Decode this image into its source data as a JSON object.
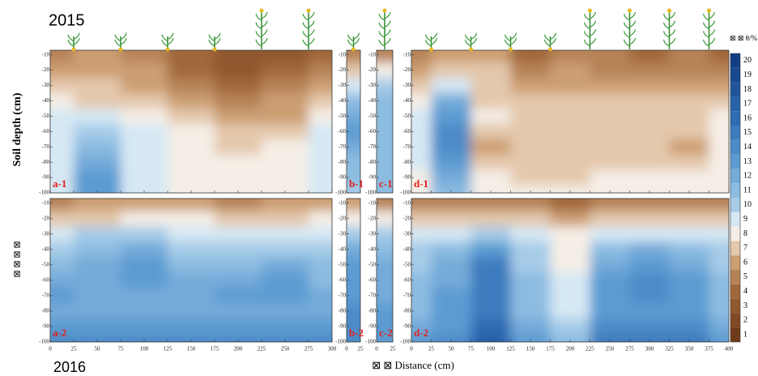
{
  "figure": {
    "title_top": "2015",
    "title_bottom": "2016",
    "y_label": "Soil depth (cm)",
    "y_label_2": "⊠ ⊠ ⊠ ⊠",
    "x_label": "⊠ ⊠ Distance (cm)"
  },
  "colorbar": {
    "label": "⊠ ⊠ θ/%",
    "lim": [
      0.5,
      20.5
    ],
    "ticks": [
      1,
      2,
      3,
      4,
      5,
      6,
      7,
      8,
      9,
      10,
      11,
      12,
      13,
      14,
      15,
      16,
      17,
      18,
      19,
      20
    ]
  },
  "chart_data": [
    {
      "type": "contour",
      "label": "a-1",
      "xlim": [
        0,
        300
      ],
      "xticks": [
        0,
        25,
        50,
        75,
        100,
        125,
        150,
        175,
        200,
        225,
        250,
        275,
        300
      ],
      "ylim": [
        -7,
        -100
      ],
      "yticks": [
        -10,
        -20,
        -30,
        -40,
        -50,
        -60,
        -70,
        -80,
        -90,
        -100
      ],
      "x": [
        0,
        50,
        100,
        150,
        200,
        250,
        300
      ],
      "y": [
        -10,
        -20,
        -30,
        -40,
        -50,
        -60,
        -70,
        -80,
        -90,
        -100
      ],
      "z": [
        [
          5,
          6,
          5,
          4,
          3,
          3,
          4
        ],
        [
          6,
          6,
          6,
          4,
          3,
          4,
          5
        ],
        [
          7,
          7,
          6,
          5,
          4,
          5,
          6
        ],
        [
          8,
          7,
          7,
          6,
          5,
          6,
          7
        ],
        [
          9,
          9,
          8,
          7,
          6,
          6,
          8
        ],
        [
          9,
          10,
          9,
          8,
          7,
          7,
          9
        ],
        [
          9,
          11,
          9,
          8,
          7,
          8,
          9
        ],
        [
          9,
          12,
          9,
          8,
          8,
          8,
          9
        ],
        [
          9,
          13,
          9,
          8,
          8,
          8,
          9
        ],
        [
          9,
          13,
          9,
          8,
          8,
          8,
          9
        ]
      ]
    },
    {
      "type": "contour",
      "label": "b-1",
      "xlim": [
        0,
        25
      ],
      "xticks": [
        0,
        25
      ],
      "ylim": [
        -7,
        -100
      ],
      "yticks": [
        -10,
        -20,
        -30,
        -40,
        -50,
        -60,
        -70,
        -80,
        -90,
        -100
      ],
      "x": [
        0,
        25
      ],
      "y": [
        -10,
        -20,
        -30,
        -40,
        -50,
        -60,
        -70,
        -80,
        -90,
        -100
      ],
      "z": [
        [
          5,
          5
        ],
        [
          7,
          7
        ],
        [
          9,
          9
        ],
        [
          11,
          11
        ],
        [
          12,
          12
        ],
        [
          13,
          13
        ],
        [
          12,
          12
        ],
        [
          11,
          11
        ],
        [
          11,
          11
        ],
        [
          10,
          10
        ]
      ]
    },
    {
      "type": "contour",
      "label": "c-1",
      "xlim": [
        0,
        25
      ],
      "xticks": [
        0,
        25
      ],
      "ylim": [
        -7,
        -100
      ],
      "yticks": [
        -10,
        -20,
        -30,
        -40,
        -50,
        -60,
        -70,
        -80,
        -90,
        -100
      ],
      "x": [
        0,
        25
      ],
      "y": [
        -10,
        -20,
        -30,
        -40,
        -50,
        -60,
        -70,
        -80,
        -90,
        -100
      ],
      "z": [
        [
          5,
          5
        ],
        [
          8,
          8
        ],
        [
          10,
          10
        ],
        [
          11,
          11
        ],
        [
          11,
          11
        ],
        [
          11,
          11
        ],
        [
          11,
          11
        ],
        [
          11,
          11
        ],
        [
          11,
          11
        ],
        [
          11,
          11
        ]
      ]
    },
    {
      "type": "contour",
      "label": "d-1",
      "xlim": [
        0,
        400
      ],
      "xticks": [
        0,
        25,
        50,
        75,
        100,
        125,
        150,
        175,
        200,
        225,
        250,
        275,
        300,
        325,
        350,
        375,
        400
      ],
      "ylim": [
        -7,
        -100
      ],
      "yticks": [
        -10,
        -20,
        -30,
        -40,
        -50,
        -60,
        -70,
        -80,
        -90,
        -100
      ],
      "x": [
        0,
        50,
        100,
        150,
        200,
        250,
        300,
        350,
        400
      ],
      "y": [
        -10,
        -20,
        -30,
        -40,
        -50,
        -60,
        -70,
        -80,
        -90,
        -100
      ],
      "z": [
        [
          5,
          6,
          6,
          4,
          5,
          5,
          4,
          5,
          4
        ],
        [
          6,
          7,
          7,
          5,
          6,
          5,
          5,
          5,
          5
        ],
        [
          7,
          9,
          7,
          6,
          6,
          6,
          6,
          6,
          6
        ],
        [
          8,
          12,
          7,
          7,
          7,
          7,
          7,
          7,
          7
        ],
        [
          9,
          13,
          8,
          7,
          7,
          7,
          7,
          7,
          8
        ],
        [
          9,
          14,
          7,
          7,
          7,
          7,
          7,
          7,
          8
        ],
        [
          9,
          14,
          6,
          7,
          7,
          7,
          7,
          6,
          8
        ],
        [
          9,
          13,
          7,
          7,
          7,
          7,
          7,
          7,
          8
        ],
        [
          8,
          12,
          8,
          7,
          7,
          8,
          8,
          8,
          8
        ],
        [
          8,
          11,
          8,
          8,
          8,
          8,
          8,
          8,
          8
        ]
      ]
    },
    {
      "type": "contour",
      "label": "a-2",
      "xlim": [
        0,
        300
      ],
      "xticks": [
        0,
        25,
        50,
        75,
        100,
        125,
        150,
        175,
        200,
        225,
        250,
        275,
        300
      ],
      "ylim": [
        -7,
        -100
      ],
      "yticks": [
        -10,
        -20,
        -30,
        -40,
        -50,
        -60,
        -70,
        -80,
        -90,
        -100
      ],
      "x": [
        0,
        50,
        100,
        150,
        200,
        250,
        300
      ],
      "y": [
        -10,
        -20,
        -30,
        -40,
        -50,
        -60,
        -70,
        -80,
        -90,
        -100
      ],
      "z": [
        [
          5,
          6,
          6,
          6,
          5,
          6,
          6
        ],
        [
          7,
          7,
          8,
          8,
          7,
          7,
          8
        ],
        [
          9,
          10,
          10,
          9,
          9,
          9,
          9
        ],
        [
          10,
          11,
          12,
          10,
          10,
          10,
          10
        ],
        [
          11,
          12,
          13,
          11,
          11,
          12,
          11
        ],
        [
          12,
          12,
          13,
          12,
          12,
          13,
          11
        ],
        [
          13,
          12,
          12,
          12,
          13,
          13,
          12
        ],
        [
          12,
          12,
          12,
          12,
          12,
          12,
          12
        ],
        [
          13,
          13,
          13,
          13,
          13,
          13,
          13
        ],
        [
          14,
          14,
          14,
          14,
          14,
          14,
          14
        ]
      ]
    },
    {
      "type": "contour",
      "label": "b-2",
      "xlim": [
        0,
        25
      ],
      "xticks": [
        0,
        25
      ],
      "ylim": [
        -7,
        -100
      ],
      "yticks": [
        -10,
        -20,
        -30,
        -40,
        -50,
        -60,
        -70,
        -80,
        -90,
        -100
      ],
      "x": [
        0,
        25
      ],
      "y": [
        -10,
        -20,
        -30,
        -40,
        -50,
        -60,
        -70,
        -80,
        -90,
        -100
      ],
      "z": [
        [
          6,
          6
        ],
        [
          8,
          8
        ],
        [
          10,
          10
        ],
        [
          12,
          12
        ],
        [
          13,
          13
        ],
        [
          13,
          13
        ],
        [
          13,
          13
        ],
        [
          14,
          14
        ],
        [
          14,
          14
        ],
        [
          14,
          14
        ]
      ]
    },
    {
      "type": "contour",
      "label": "c-2",
      "xlim": [
        0,
        25
      ],
      "xticks": [
        0,
        25
      ],
      "ylim": [
        -7,
        -100
      ],
      "yticks": [
        -10,
        -20,
        -30,
        -40,
        -50,
        -60,
        -70,
        -80,
        -90,
        -100
      ],
      "x": [
        0,
        25
      ],
      "y": [
        -10,
        -20,
        -30,
        -40,
        -50,
        -60,
        -70,
        -80,
        -90,
        -100
      ],
      "z": [
        [
          5,
          5
        ],
        [
          8,
          8
        ],
        [
          10,
          10
        ],
        [
          11,
          11
        ],
        [
          12,
          12
        ],
        [
          12,
          12
        ],
        [
          12,
          12
        ],
        [
          13,
          13
        ],
        [
          13,
          13
        ],
        [
          13,
          13
        ]
      ]
    },
    {
      "type": "contour",
      "label": "d-2",
      "xlim": [
        0,
        400
      ],
      "xticks": [
        0,
        25,
        50,
        75,
        100,
        125,
        150,
        175,
        200,
        225,
        250,
        275,
        300,
        325,
        350,
        375,
        400
      ],
      "ylim": [
        -7,
        -100
      ],
      "yticks": [
        -10,
        -20,
        -30,
        -40,
        -50,
        -60,
        -70,
        -80,
        -90,
        -100
      ],
      "x": [
        0,
        50,
        100,
        150,
        200,
        250,
        300,
        350,
        400
      ],
      "y": [
        -10,
        -20,
        -30,
        -40,
        -50,
        -60,
        -70,
        -80,
        -90,
        -100
      ],
      "z": [
        [
          5,
          5,
          5,
          5,
          4,
          5,
          5,
          5,
          5
        ],
        [
          7,
          7,
          7,
          7,
          6,
          7,
          7,
          7,
          7
        ],
        [
          9,
          9,
          10,
          9,
          8,
          9,
          9,
          9,
          9
        ],
        [
          10,
          11,
          13,
          10,
          8,
          11,
          12,
          11,
          10
        ],
        [
          10,
          12,
          15,
          10,
          8,
          12,
          13,
          12,
          10
        ],
        [
          11,
          12,
          15,
          11,
          9,
          13,
          14,
          13,
          11
        ],
        [
          11,
          13,
          15,
          11,
          9,
          13,
          14,
          13,
          11
        ],
        [
          11,
          13,
          15,
          11,
          9,
          13,
          13,
          13,
          11
        ],
        [
          12,
          13,
          16,
          12,
          10,
          14,
          14,
          14,
          12
        ],
        [
          13,
          14,
          17,
          13,
          11,
          15,
          15,
          15,
          13
        ]
      ]
    }
  ]
}
